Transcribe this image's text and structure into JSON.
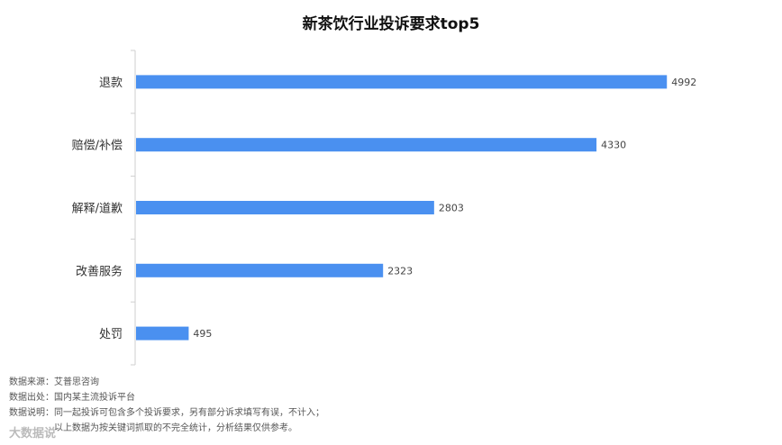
{
  "chart_data": {
    "type": "bar",
    "orientation": "horizontal",
    "title": "新茶饮行业投诉要求top5",
    "categories": [
      "退款",
      "赔偿/补偿",
      "解释/道歉",
      "改善服务",
      "处罚"
    ],
    "values": [
      4992,
      4330,
      2803,
      2323,
      495
    ],
    "xlim": [
      0,
      5600
    ],
    "bar_color": "#4a90f0",
    "grid": false
  },
  "notes": {
    "line1": "数据来源：艾普思咨询",
    "line2": "数据出处：国内某主流投诉平台",
    "line3": "数据说明：同一起投诉可包含多个投诉要求，另有部分诉求填写有误，不计入；",
    "line4": "以上数据为按关键词抓取的不完全统计，分析结果仅供参考。"
  },
  "footer": {
    "brand": "大数据说"
  }
}
